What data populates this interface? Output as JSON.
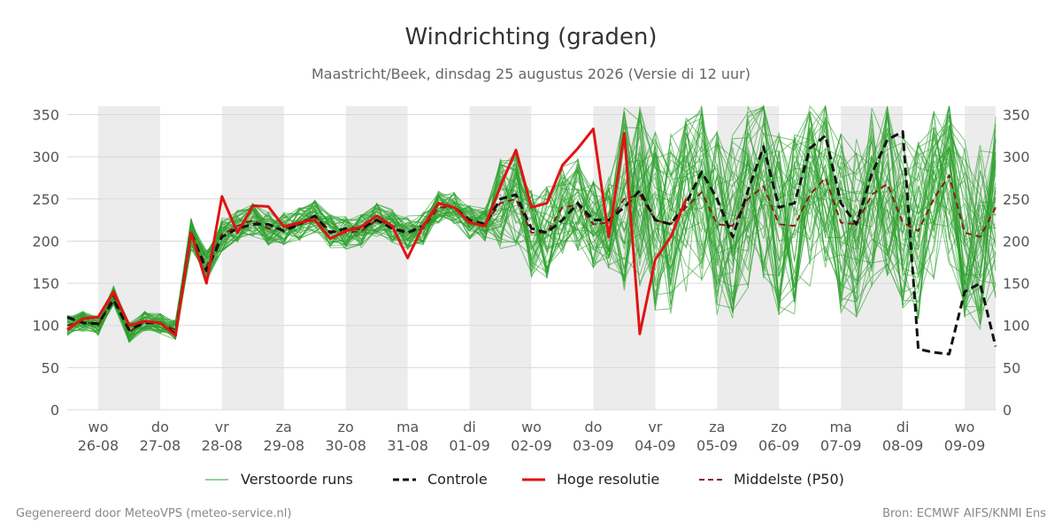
{
  "chart_data": {
    "type": "line",
    "title": "Windrichting (graden)",
    "subtitle": "Maastricht/Beek, dinsdag 25 augustus 2026 (Versie di 12 uur)",
    "ylim": [
      0,
      360
    ],
    "yticks": [
      0,
      50,
      100,
      150,
      200,
      250,
      300,
      350
    ],
    "x_start": "2026-08-25T12:00",
    "x_end": "2026-09-09T12:00",
    "x_step_hours": 6,
    "day_labels": [
      {
        "day": "wo",
        "date": "26-08"
      },
      {
        "day": "do",
        "date": "27-08"
      },
      {
        "day": "vr",
        "date": "28-08"
      },
      {
        "day": "za",
        "date": "29-08"
      },
      {
        "day": "zo",
        "date": "30-08"
      },
      {
        "day": "ma",
        "date": "31-08"
      },
      {
        "day": "di",
        "date": "01-09"
      },
      {
        "day": "wo",
        "date": "02-09"
      },
      {
        "day": "do",
        "date": "03-09"
      },
      {
        "day": "vr",
        "date": "04-09"
      },
      {
        "day": "za",
        "date": "05-09"
      },
      {
        "day": "zo",
        "date": "06-09"
      },
      {
        "day": "ma",
        "date": "07-09"
      },
      {
        "day": "di",
        "date": "08-09"
      },
      {
        "day": "wo",
        "date": "09-09"
      }
    ],
    "shaded_days": [
      1,
      3,
      5,
      7,
      9,
      11,
      13,
      15
    ],
    "series": [
      {
        "name": "Controle",
        "color": "#111111",
        "style": "dashed",
        "values": [
          110,
          103,
          102,
          130,
          95,
          103,
          103,
          90,
          210,
          165,
          205,
          215,
          220,
          220,
          212,
          220,
          230,
          210,
          215,
          215,
          225,
          215,
          210,
          218,
          245,
          240,
          225,
          220,
          250,
          255,
          215,
          210,
          225,
          245,
          225,
          225,
          240,
          260,
          225,
          220,
          245,
          282,
          250,
          205,
          260,
          312,
          240,
          245,
          310,
          325,
          245,
          220,
          280,
          320,
          330,
          72,
          68,
          66,
          140,
          150,
          75
        ]
      },
      {
        "name": "Hoge resolutie",
        "color": "#e11313",
        "style": "solid",
        "values": [
          95,
          108,
          110,
          140,
          100,
          105,
          103,
          88,
          210,
          150,
          253,
          210,
          242,
          241,
          217,
          222,
          225,
          203,
          212,
          217,
          230,
          218,
          180,
          218,
          245,
          240,
          222,
          218,
          265,
          308,
          240,
          245,
          290,
          310,
          333,
          205,
          328,
          90,
          178,
          205,
          250
        ]
      },
      {
        "name": "Middelste (P50)",
        "color": "#8b1a1a",
        "style": "dashed",
        "values": [
          100,
          105,
          100,
          135,
          92,
          105,
          102,
          95,
          208,
          170,
          208,
          218,
          225,
          215,
          215,
          220,
          230,
          212,
          210,
          212,
          225,
          218,
          210,
          215,
          240,
          240,
          222,
          220,
          245,
          250,
          210,
          210,
          240,
          243,
          220,
          222,
          250,
          255,
          225,
          220,
          240,
          258,
          220,
          218,
          250,
          265,
          220,
          218,
          255,
          275,
          222,
          220,
          255,
          268,
          222,
          212,
          250,
          278,
          210,
          205,
          240
        ]
      }
    ],
    "ensemble": {
      "name": "Verstoorde runs",
      "color": "#2ca02c",
      "member_count": 50
    },
    "legend": {
      "placement": "bottom",
      "items": [
        "Verstoorde runs",
        "Controle",
        "Hoge resolutie",
        "Middelste (P50)"
      ]
    },
    "grid": true
  },
  "footer": {
    "left": "Gegenereerd door MeteoVPS (meteo-service.nl)",
    "right": "Bron: ECMWF AIFS/KNMI Ens"
  }
}
